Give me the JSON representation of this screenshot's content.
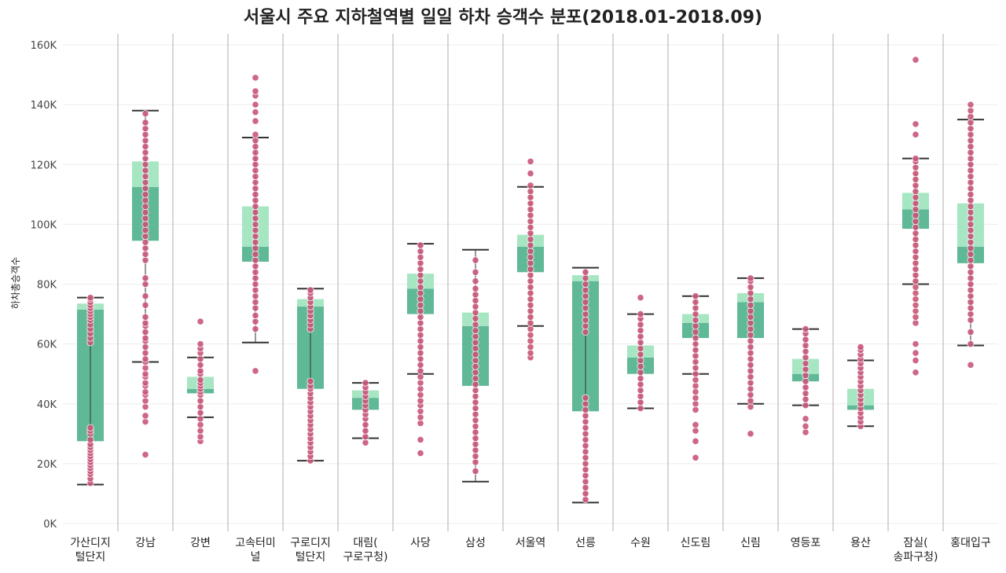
{
  "chart_data": {
    "type": "box",
    "title": "서울시 주요 지하철역별 일일 하차 승객수 분포(2018.01-2018.09)",
    "ylabel": "하차총승객수",
    "xlabel": "",
    "ylim": [
      0,
      160000
    ],
    "yticks": [
      {
        "value": 0,
        "label": "0K"
      },
      {
        "value": 20000,
        "label": "20K"
      },
      {
        "value": 40000,
        "label": "40K"
      },
      {
        "value": 60000,
        "label": "60K"
      },
      {
        "value": 80000,
        "label": "80K"
      },
      {
        "value": 100000,
        "label": "100K"
      },
      {
        "value": 120000,
        "label": "120K"
      },
      {
        "value": 140000,
        "label": "140K"
      },
      {
        "value": 160000,
        "label": "160K"
      }
    ],
    "grid": true,
    "colors": {
      "box_lower": "#5fb896",
      "box_upper": "#a6e6c2",
      "points": "#c9577a",
      "whisker": "#333333",
      "divider": "#c8c8c8",
      "grid": "#ececec"
    },
    "stations": [
      {
        "label": [
          "가산디지",
          "털단지"
        ],
        "lw": 13000,
        "q1": 27500,
        "med": 71500,
        "q3": 73500,
        "uw": 75500,
        "points": [
          13500,
          15000,
          16500,
          17500,
          18500,
          19500,
          20500,
          21500,
          22500,
          23500,
          24500,
          25500,
          26500,
          28000,
          30000,
          31000,
          32000,
          60500,
          62000,
          63500,
          65000,
          66500,
          68000,
          69000,
          70000,
          71000,
          72000,
          73000,
          74000,
          75000,
          75500
        ]
      },
      {
        "label": [
          "강남"
        ],
        "lw": 54000,
        "q1": 94500,
        "med": 112500,
        "q3": 121000,
        "uw": 138000,
        "points": [
          23000,
          34000,
          36000,
          39000,
          41000,
          43000,
          44000,
          46000,
          47000,
          49000,
          50000,
          52000,
          54000,
          55000,
          57000,
          59000,
          61000,
          62000,
          64000,
          66000,
          67000,
          69000,
          73000,
          76000,
          80000,
          82000,
          88000,
          90000,
          92000,
          94000,
          96000,
          98000,
          100000,
          102000,
          104000,
          106000,
          108000,
          110000,
          112000,
          114000,
          116000,
          118000,
          120000,
          122000,
          124000,
          126000,
          128000,
          130000,
          132000,
          134000,
          137000
        ]
      },
      {
        "label": [
          "강변"
        ],
        "lw": 35500,
        "q1": 43500,
        "med": 45000,
        "q3": 49000,
        "uw": 55500,
        "points": [
          27500,
          29000,
          31000,
          33000,
          35000,
          37000,
          39000,
          41000,
          43000,
          44000,
          45000,
          46000,
          47000,
          48000,
          50000,
          51000,
          53000,
          55000,
          57000,
          58500,
          60000,
          67500
        ]
      },
      {
        "label": [
          "고속터미",
          "널"
        ],
        "lw": 60500,
        "q1": 87500,
        "med": 92500,
        "q3": 106000,
        "uw": 129000,
        "points": [
          51000,
          65000,
          67500,
          69500,
          72000,
          74000,
          76000,
          78000,
          80000,
          82000,
          84000,
          86000,
          88000,
          90000,
          92000,
          94000,
          96000,
          98000,
          100000,
          102000,
          104000,
          106000,
          108000,
          110000,
          112000,
          114000,
          116000,
          118000,
          120000,
          122000,
          124000,
          126000,
          128000,
          130000,
          134500,
          137500,
          140000,
          143000,
          144500,
          149000
        ]
      },
      {
        "label": [
          "구로디지",
          "털단지"
        ],
        "lw": 21000,
        "q1": 45000,
        "med": 72500,
        "q3": 75000,
        "uw": 78500,
        "points": [
          21000,
          22500,
          24000,
          25500,
          27000,
          28500,
          30000,
          31500,
          33000,
          34500,
          36000,
          37500,
          39000,
          40500,
          42000,
          43500,
          45000,
          46000,
          47500,
          65000,
          66500,
          68000,
          69500,
          71000,
          72500,
          74000,
          75500,
          77000,
          78000
        ]
      },
      {
        "label": [
          "대림(",
          "구로구청)"
        ],
        "lw": 28500,
        "q1": 38000,
        "med": 42000,
        "q3": 44500,
        "uw": 47000,
        "points": [
          27000,
          29000,
          31000,
          33000,
          35000,
          36500,
          38000,
          39500,
          41000,
          42500,
          44000,
          45500,
          47000
        ]
      },
      {
        "label": [
          "사당"
        ],
        "lw": 50000,
        "q1": 70000,
        "med": 78500,
        "q3": 83500,
        "uw": 93500,
        "points": [
          23500,
          28000,
          33500,
          35500,
          37500,
          39500,
          41000,
          43000,
          45000,
          47000,
          49000,
          51000,
          53000,
          55000,
          57000,
          59000,
          61000,
          63000,
          65000,
          67000,
          69000,
          71000,
          73000,
          75000,
          77000,
          79000,
          81000,
          83000,
          85000,
          87000,
          89000,
          91000,
          93000
        ]
      },
      {
        "label": [
          "삼성"
        ],
        "lw": 14000,
        "q1": 46000,
        "med": 66000,
        "q3": 70500,
        "uw": 91500,
        "points": [
          17500,
          20500,
          22500,
          24500,
          26500,
          28500,
          30500,
          32500,
          34500,
          36500,
          38500,
          40500,
          42500,
          44500,
          46500,
          48500,
          50500,
          52500,
          54500,
          56500,
          58500,
          60500,
          62500,
          64500,
          66500,
          68500,
          70500,
          72500,
          74500,
          76500,
          78500,
          81000,
          84000,
          88000
        ]
      },
      {
        "label": [
          "서울역"
        ],
        "lw": 66000,
        "q1": 84000,
        "med": 92500,
        "q3": 96500,
        "uw": 112500,
        "points": [
          55500,
          57000,
          59000,
          61000,
          63000,
          65000,
          67000,
          69000,
          71000,
          73000,
          75000,
          77000,
          79000,
          81000,
          83000,
          85000,
          87000,
          89000,
          91000,
          93000,
          95000,
          97000,
          99000,
          101000,
          103000,
          105000,
          107000,
          109000,
          111000,
          113000,
          117000,
          121000
        ]
      },
      {
        "label": [
          "선릉"
        ],
        "lw": 7000,
        "q1": 37500,
        "med": 81000,
        "q3": 83000,
        "uw": 85500,
        "points": [
          8000,
          10000,
          12000,
          14000,
          16000,
          18000,
          20000,
          22000,
          24000,
          26000,
          28000,
          30000,
          32000,
          34000,
          36000,
          38000,
          40000,
          42000,
          64000,
          66000,
          68000,
          70000,
          72000,
          74000,
          76000,
          78000,
          80000,
          82000,
          84000
        ]
      },
      {
        "label": [
          "수원"
        ],
        "lw": 38500,
        "q1": 50000,
        "med": 55500,
        "q3": 59500,
        "uw": 70000,
        "points": [
          38500,
          40500,
          42500,
          44500,
          46500,
          48500,
          50500,
          52500,
          54500,
          56500,
          58500,
          60500,
          62500,
          64500,
          66500,
          68500,
          70000,
          75500
        ]
      },
      {
        "label": [
          "신도림"
        ],
        "lw": 50000,
        "q1": 62000,
        "med": 67000,
        "q3": 70000,
        "uw": 76000,
        "points": [
          22000,
          27500,
          31000,
          33000,
          38000,
          40000,
          42000,
          44000,
          46000,
          48000,
          50000,
          52000,
          54000,
          56000,
          58000,
          60000,
          62000,
          64000,
          66000,
          68000,
          70000,
          72000,
          74000,
          76000
        ]
      },
      {
        "label": [
          "신림"
        ],
        "lw": 40000,
        "q1": 62000,
        "med": 74000,
        "q3": 77000,
        "uw": 82000,
        "points": [
          30000,
          39000,
          41000,
          43000,
          45000,
          47000,
          49000,
          51000,
          53000,
          55000,
          57000,
          59000,
          61000,
          63000,
          65000,
          67000,
          69000,
          71000,
          73000,
          75000,
          77000,
          79000,
          81000,
          82000
        ]
      },
      {
        "label": [
          "영등포"
        ],
        "lw": 39500,
        "q1": 47500,
        "med": 50000,
        "q3": 55000,
        "uw": 65000,
        "points": [
          30500,
          32500,
          35000,
          39500,
          41500,
          43500,
          45500,
          47500,
          49500,
          51500,
          53500,
          55500,
          57500,
          59500,
          61500,
          63500,
          65000
        ]
      },
      {
        "label": [
          "용산"
        ],
        "lw": 32500,
        "q1": 38000,
        "med": 39500,
        "q3": 45000,
        "uw": 54500,
        "points": [
          32500,
          34000,
          35500,
          37000,
          38500,
          40000,
          41500,
          43000,
          44500,
          46000,
          47500,
          49000,
          50500,
          52000,
          53500,
          55000,
          56500,
          58000,
          59000
        ]
      },
      {
        "label": [
          "잠실(",
          "송파구청)"
        ],
        "lw": 80000,
        "q1": 98500,
        "med": 105000,
        "q3": 110500,
        "uw": 122000,
        "points": [
          50500,
          54500,
          57000,
          60000,
          67000,
          69000,
          71000,
          73000,
          75000,
          77000,
          79000,
          81000,
          83000,
          85000,
          87000,
          89000,
          91000,
          93000,
          95000,
          97000,
          99000,
          101000,
          103000,
          105000,
          107000,
          109000,
          111000,
          113000,
          115000,
          117000,
          119000,
          121000,
          122000,
          130000,
          133500,
          155000
        ]
      },
      {
        "label": [
          "홍대입구"
        ],
        "lw": 59500,
        "q1": 87000,
        "med": 92500,
        "q3": 107000,
        "uw": 135000,
        "points": [
          53000,
          60000,
          64000,
          68000,
          70000,
          72000,
          74000,
          76000,
          78000,
          80000,
          82000,
          84000,
          86000,
          88000,
          90000,
          92000,
          94000,
          96000,
          98000,
          100000,
          102000,
          104000,
          106000,
          108000,
          110000,
          112000,
          114000,
          116000,
          118000,
          120000,
          122000,
          124000,
          126000,
          128000,
          130000,
          132000,
          134000,
          136000,
          138000,
          140000
        ]
      }
    ]
  }
}
